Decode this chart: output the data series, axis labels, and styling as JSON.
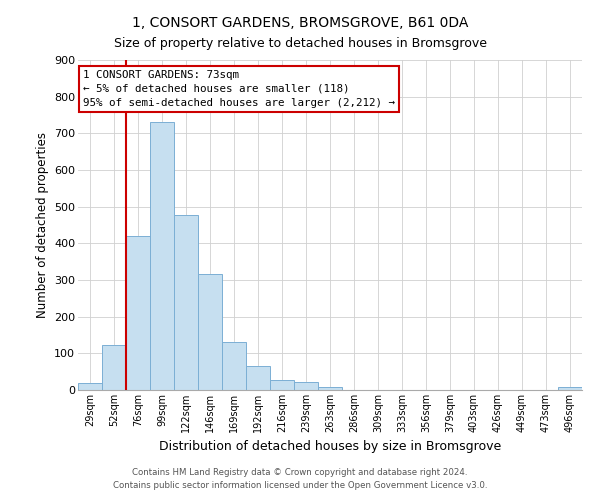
{
  "title": "1, CONSORT GARDENS, BROMSGROVE, B61 0DA",
  "subtitle": "Size of property relative to detached houses in Bromsgrove",
  "xlabel": "Distribution of detached houses by size in Bromsgrove",
  "ylabel": "Number of detached properties",
  "bin_labels": [
    "29sqm",
    "52sqm",
    "76sqm",
    "99sqm",
    "122sqm",
    "146sqm",
    "169sqm",
    "192sqm",
    "216sqm",
    "239sqm",
    "263sqm",
    "286sqm",
    "309sqm",
    "333sqm",
    "356sqm",
    "379sqm",
    "403sqm",
    "426sqm",
    "449sqm",
    "473sqm",
    "496sqm"
  ],
  "bar_values": [
    20,
    122,
    420,
    730,
    478,
    316,
    132,
    65,
    28,
    22,
    8,
    0,
    0,
    0,
    0,
    0,
    0,
    0,
    0,
    0,
    8
  ],
  "bar_color": "#c6dff0",
  "bar_edge_color": "#7bafd4",
  "marker_color": "#cc0000",
  "annotation_title": "1 CONSORT GARDENS: 73sqm",
  "annotation_line1": "← 5% of detached houses are smaller (118)",
  "annotation_line2": "95% of semi-detached houses are larger (2,212) →",
  "annotation_box_color": "#ffffff",
  "annotation_box_edge": "#cc0000",
  "ylim": [
    0,
    900
  ],
  "yticks": [
    0,
    100,
    200,
    300,
    400,
    500,
    600,
    700,
    800,
    900
  ],
  "footer1": "Contains HM Land Registry data © Crown copyright and database right 2024.",
  "footer2": "Contains public sector information licensed under the Open Government Licence v3.0."
}
